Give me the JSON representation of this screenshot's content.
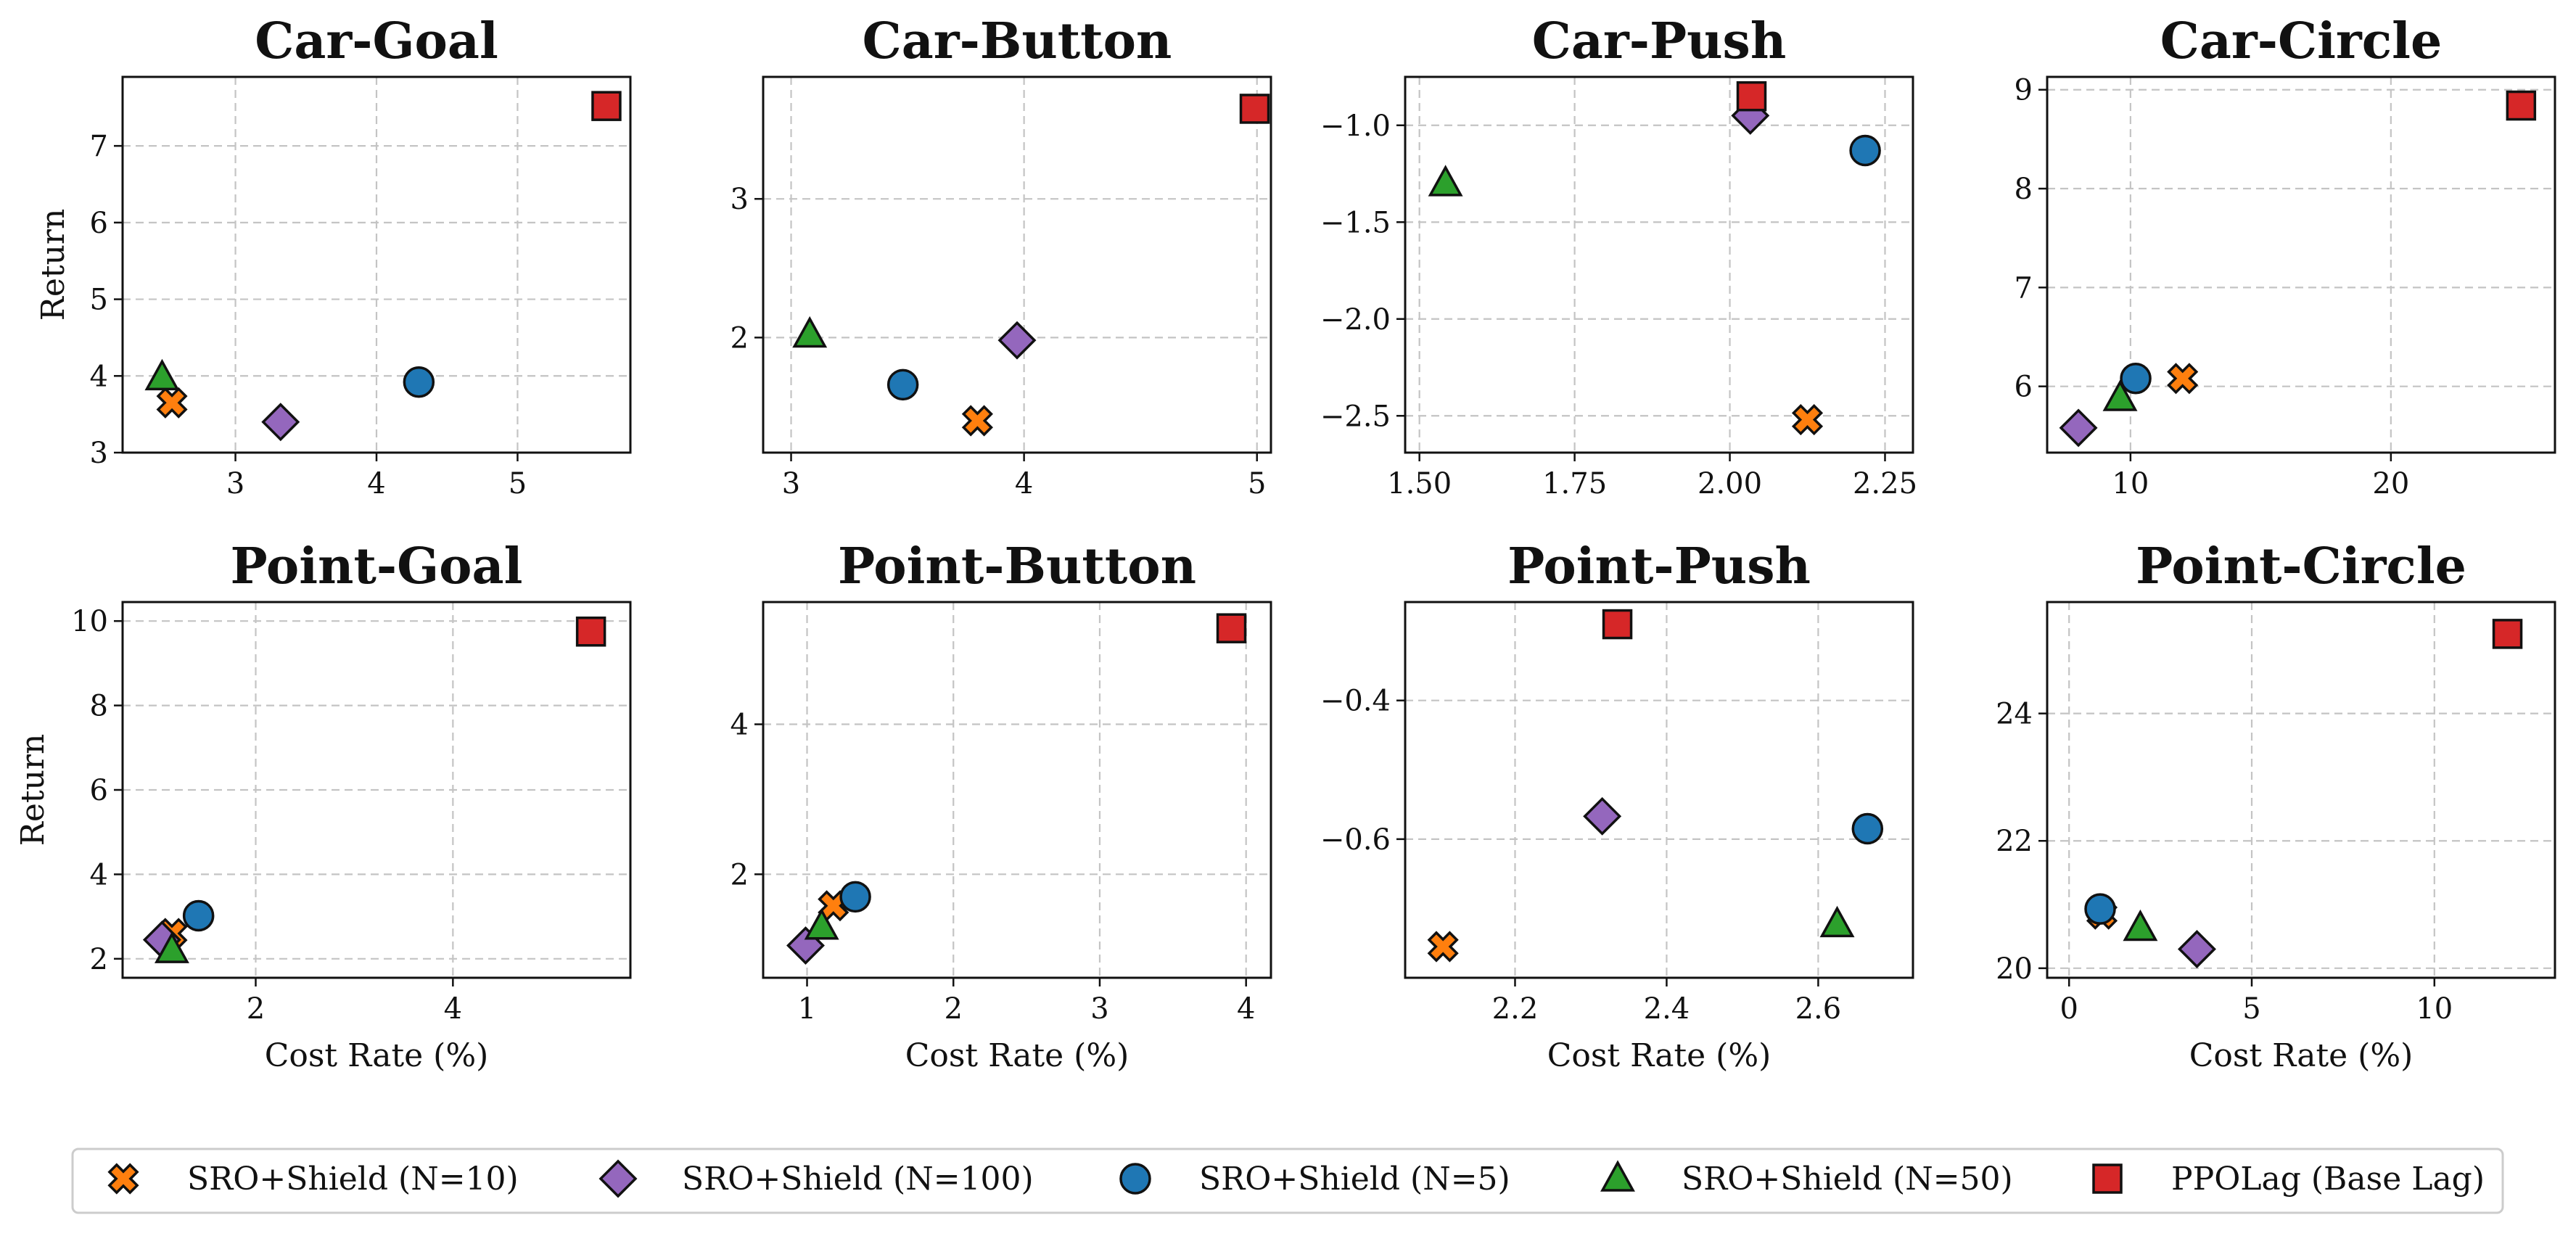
{
  "figure": {
    "legend": {
      "placement": "bottom-center",
      "entries": [
        {
          "series": 0,
          "label": "SRO+Shield (N=10)"
        },
        {
          "series": 1,
          "label": "SRO+Shield (N=100)"
        },
        {
          "series": 2,
          "label": "SRO+Shield (N=5)"
        },
        {
          "series": 3,
          "label": "SRO+Shield (N=50)"
        },
        {
          "series": 4,
          "label": "PPOLag (Base Lag)"
        }
      ]
    }
  },
  "series_styles": [
    {
      "marker": "x-icon",
      "color": "#ff7f0e"
    },
    {
      "marker": "diamond-icon",
      "color": "#9467bd"
    },
    {
      "marker": "circle-icon",
      "color": "#1f77b4"
    },
    {
      "marker": "triangle-icon",
      "color": "#2ca02c"
    },
    {
      "marker": "square-icon",
      "color": "#d62728"
    }
  ],
  "chart_data": [
    {
      "type": "scatter",
      "title": "Car-Goal",
      "xlabel": "",
      "ylabel": "Return",
      "xlim": [
        2.2,
        5.8
      ],
      "ylim": [
        3,
        7.9
      ],
      "xticks": [
        3,
        4,
        5
      ],
      "xtick_labels": [
        "3",
        "4",
        "5"
      ],
      "yticks": [
        3,
        4,
        5,
        6,
        7
      ],
      "ytick_labels": [
        "3",
        "4",
        "5",
        "6",
        "7"
      ],
      "grid": true,
      "series": [
        {
          "name": "SRO+Shield (N=10)",
          "x": [
            2.55
          ],
          "y": [
            3.65
          ]
        },
        {
          "name": "SRO+Shield (N=100)",
          "x": [
            3.32
          ],
          "y": [
            3.4
          ]
        },
        {
          "name": "SRO+Shield (N=5)",
          "x": [
            4.3
          ],
          "y": [
            3.92
          ]
        },
        {
          "name": "SRO+Shield (N=50)",
          "x": [
            2.48
          ],
          "y": [
            3.98
          ]
        },
        {
          "name": "PPOLag (Base Lag)",
          "x": [
            5.63
          ],
          "y": [
            7.52
          ]
        }
      ]
    },
    {
      "type": "scatter",
      "title": "Car-Button",
      "xlabel": "",
      "ylabel": "",
      "xlim": [
        2.88,
        5.06
      ],
      "ylim": [
        1.17,
        3.88
      ],
      "xticks": [
        3,
        4,
        5
      ],
      "xtick_labels": [
        "3",
        "4",
        "5"
      ],
      "yticks": [
        2,
        3
      ],
      "ytick_labels": [
        "2",
        "3"
      ],
      "grid": true,
      "series": [
        {
          "name": "SRO+Shield (N=10)",
          "x": [
            3.8
          ],
          "y": [
            1.4
          ]
        },
        {
          "name": "SRO+Shield (N=100)",
          "x": [
            3.97
          ],
          "y": [
            1.98
          ]
        },
        {
          "name": "SRO+Shield (N=5)",
          "x": [
            3.48
          ],
          "y": [
            1.66
          ]
        },
        {
          "name": "SRO+Shield (N=50)",
          "x": [
            3.08
          ],
          "y": [
            2.02
          ]
        },
        {
          "name": "PPOLag (Base Lag)",
          "x": [
            4.99
          ],
          "y": [
            3.65
          ]
        }
      ]
    },
    {
      "type": "scatter",
      "title": "Car-Push",
      "xlabel": "",
      "ylabel": "",
      "xlim": [
        1.477,
        2.295
      ],
      "ylim": [
        -2.69,
        -0.75
      ],
      "xticks": [
        1.5,
        1.75,
        2.0,
        2.25
      ],
      "xtick_labels": [
        "1.50",
        "1.75",
        "2.00",
        "2.25"
      ],
      "yticks": [
        -2.5,
        -2.0,
        -1.5,
        -1.0
      ],
      "ytick_labels": [
        "−2.5",
        "−2.0",
        "−1.5",
        "−1.0"
      ],
      "grid": true,
      "series": [
        {
          "name": "SRO+Shield (N=10)",
          "x": [
            2.125
          ],
          "y": [
            -2.52
          ]
        },
        {
          "name": "SRO+Shield (N=100)",
          "x": [
            2.033
          ],
          "y": [
            -0.95
          ]
        },
        {
          "name": "SRO+Shield (N=5)",
          "x": [
            2.218
          ],
          "y": [
            -1.13
          ]
        },
        {
          "name": "SRO+Shield (N=50)",
          "x": [
            1.542
          ],
          "y": [
            -1.3
          ]
        },
        {
          "name": "PPOLag (Base Lag)",
          "x": [
            2.035
          ],
          "y": [
            -0.85
          ]
        }
      ]
    },
    {
      "type": "scatter",
      "title": "Car-Circle",
      "xlabel": "",
      "ylabel": "",
      "xlim": [
        6.8,
        26.3
      ],
      "ylim": [
        5.33,
        9.13
      ],
      "xticks": [
        10,
        20
      ],
      "xtick_labels": [
        "10",
        "20"
      ],
      "yticks": [
        6,
        7,
        8,
        9
      ],
      "ytick_labels": [
        "6",
        "7",
        "8",
        "9"
      ],
      "grid": true,
      "series": [
        {
          "name": "SRO+Shield (N=10)",
          "x": [
            12.0
          ],
          "y": [
            6.08
          ]
        },
        {
          "name": "SRO+Shield (N=100)",
          "x": [
            8.0
          ],
          "y": [
            5.58
          ]
        },
        {
          "name": "SRO+Shield (N=5)",
          "x": [
            10.2
          ],
          "y": [
            6.08
          ]
        },
        {
          "name": "SRO+Shield (N=50)",
          "x": [
            9.6
          ],
          "y": [
            5.88
          ]
        },
        {
          "name": "PPOLag (Base Lag)",
          "x": [
            25.0
          ],
          "y": [
            8.84
          ]
        }
      ]
    },
    {
      "type": "scatter",
      "title": "Point-Goal",
      "xlabel": "Cost Rate (%)",
      "ylabel": "Return",
      "xlim": [
        0.65,
        5.8
      ],
      "ylim": [
        1.55,
        10.45
      ],
      "xticks": [
        2,
        4
      ],
      "xtick_labels": [
        "2",
        "4"
      ],
      "yticks": [
        2,
        4,
        6,
        8,
        10
      ],
      "ytick_labels": [
        "2",
        "4",
        "6",
        "8",
        "10"
      ],
      "grid": true,
      "series": [
        {
          "name": "SRO+Shield (N=10)",
          "x": [
            1.15
          ],
          "y": [
            2.6
          ]
        },
        {
          "name": "SRO+Shield (N=100)",
          "x": [
            1.05
          ],
          "y": [
            2.45
          ]
        },
        {
          "name": "SRO+Shield (N=5)",
          "x": [
            1.42
          ],
          "y": [
            3.02
          ]
        },
        {
          "name": "SRO+Shield (N=50)",
          "x": [
            1.15
          ],
          "y": [
            2.2
          ]
        },
        {
          "name": "PPOLag (Base Lag)",
          "x": [
            5.4
          ],
          "y": [
            9.75
          ]
        }
      ]
    },
    {
      "type": "scatter",
      "title": "Point-Button",
      "xlabel": "Cost Rate (%)",
      "ylabel": "",
      "xlim": [
        0.7,
        4.17
      ],
      "ylim": [
        0.62,
        5.63
      ],
      "xticks": [
        1,
        2,
        3,
        4
      ],
      "xtick_labels": [
        "1",
        "2",
        "3",
        "4"
      ],
      "yticks": [
        2,
        4
      ],
      "ytick_labels": [
        "2",
        "4"
      ],
      "grid": true,
      "series": [
        {
          "name": "SRO+Shield (N=10)",
          "x": [
            1.18
          ],
          "y": [
            1.58
          ]
        },
        {
          "name": "SRO+Shield (N=100)",
          "x": [
            0.99
          ],
          "y": [
            1.05
          ]
        },
        {
          "name": "SRO+Shield (N=5)",
          "x": [
            1.33
          ],
          "y": [
            1.7
          ]
        },
        {
          "name": "SRO+Shield (N=50)",
          "x": [
            1.1
          ],
          "y": [
            1.3
          ]
        },
        {
          "name": "PPOLag (Base Lag)",
          "x": [
            3.9
          ],
          "y": [
            5.28
          ]
        }
      ]
    },
    {
      "type": "scatter",
      "title": "Point-Push",
      "xlabel": "Cost Rate (%)",
      "ylabel": "",
      "xlim": [
        2.055,
        2.725
      ],
      "ylim": [
        -0.8,
        -0.258
      ],
      "xticks": [
        2.2,
        2.4,
        2.6
      ],
      "xtick_labels": [
        "2.2",
        "2.4",
        "2.6"
      ],
      "yticks": [
        -0.6,
        -0.4
      ],
      "ytick_labels": [
        "−0.6",
        "−0.4"
      ],
      "grid": true,
      "series": [
        {
          "name": "SRO+Shield (N=10)",
          "x": [
            2.105
          ],
          "y": [
            -0.755
          ]
        },
        {
          "name": "SRO+Shield (N=100)",
          "x": [
            2.315
          ],
          "y": [
            -0.567
          ]
        },
        {
          "name": "SRO+Shield (N=5)",
          "x": [
            2.665
          ],
          "y": [
            -0.585
          ]
        },
        {
          "name": "SRO+Shield (N=50)",
          "x": [
            2.625
          ],
          "y": [
            -0.723
          ]
        },
        {
          "name": "PPOLag (Base Lag)",
          "x": [
            2.335
          ],
          "y": [
            -0.29
          ]
        }
      ]
    },
    {
      "type": "scatter",
      "title": "Point-Circle",
      "xlabel": "Cost Rate (%)",
      "ylabel": "",
      "xlim": [
        -0.6,
        13.3
      ],
      "ylim": [
        19.85,
        25.75
      ],
      "xticks": [
        0,
        5,
        10
      ],
      "xtick_labels": [
        "0",
        "5",
        "10"
      ],
      "yticks": [
        20,
        22,
        24
      ],
      "ytick_labels": [
        "20",
        "22",
        "24"
      ],
      "grid": true,
      "series": [
        {
          "name": "SRO+Shield (N=10)",
          "x": [
            0.9
          ],
          "y": [
            20.85
          ]
        },
        {
          "name": "SRO+Shield (N=100)",
          "x": [
            3.5
          ],
          "y": [
            20.3
          ]
        },
        {
          "name": "SRO+Shield (N=5)",
          "x": [
            0.85
          ],
          "y": [
            20.93
          ]
        },
        {
          "name": "SRO+Shield (N=50)",
          "x": [
            1.95
          ],
          "y": [
            20.63
          ]
        },
        {
          "name": "PPOLag (Base Lag)",
          "x": [
            12.0
          ],
          "y": [
            25.25
          ]
        }
      ]
    }
  ]
}
